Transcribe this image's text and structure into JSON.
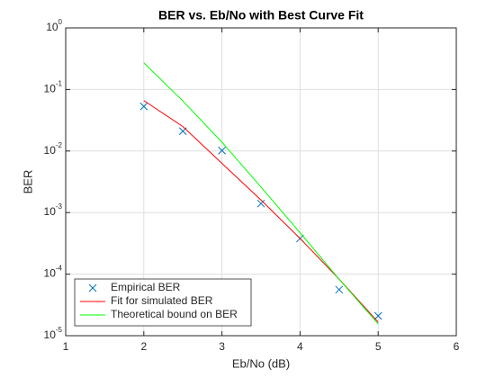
{
  "chart_data": {
    "type": "line",
    "title": "BER vs. Eb/No with Best Curve Fit",
    "xlabel": "Eb/No (dB)",
    "ylabel": "BER",
    "x": [
      2,
      2.5,
      3,
      3.5,
      4,
      4.5,
      5
    ],
    "series": [
      {
        "name": "Empirical BER",
        "color": "#0072bd",
        "marker": "x",
        "line": false,
        "values": [
          0.053,
          0.021,
          0.0102,
          0.0014,
          0.00038,
          5.6e-05,
          2.1e-05
        ]
      },
      {
        "name": "Fit for simulated BER",
        "color": "#ff0000",
        "marker": null,
        "line": true,
        "values": [
          0.066,
          0.025,
          0.0063,
          0.0016,
          0.00038,
          8.3e-05,
          1.66e-05
        ]
      },
      {
        "name": "Theoretical bound on BER",
        "color": "#00ff00",
        "marker": null,
        "line": true,
        "values": [
          0.27,
          0.065,
          0.0139,
          0.0026,
          0.00047,
          8.3e-05,
          1.55e-05
        ]
      }
    ],
    "xlim": [
      1,
      6
    ],
    "xticks": [
      1,
      2,
      3,
      4,
      5,
      6
    ],
    "ylim": [
      1e-05,
      1
    ],
    "ylog": true,
    "yticks": [
      {
        "value": 1e-05,
        "label": "10",
        "exponent": "-5"
      },
      {
        "value": 0.0001,
        "label": "10",
        "exponent": "-4"
      },
      {
        "value": 0.001,
        "label": "10",
        "exponent": "-3"
      },
      {
        "value": 0.01,
        "label": "10",
        "exponent": "-2"
      },
      {
        "value": 0.1,
        "label": "10",
        "exponent": "-1"
      },
      {
        "value": 1,
        "label": "10",
        "exponent": "0"
      }
    ],
    "grid": true,
    "legend": "southwest"
  }
}
